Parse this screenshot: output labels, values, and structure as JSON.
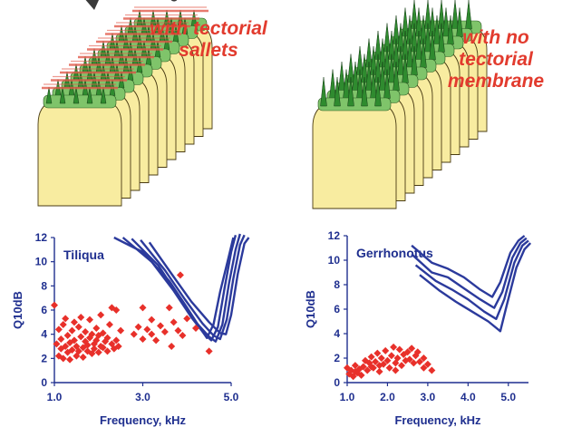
{
  "captions": {
    "left": [
      "with tectorial",
      "sallets"
    ],
    "right": [
      "with no",
      "tectorial",
      "membrane"
    ]
  },
  "colors": {
    "caption": "#e23b2e",
    "axis": "#1f2f8f",
    "points": "#e8302a",
    "tuning_curves": "#2b3a9c",
    "papilla_body": "#f8eca0",
    "hair_bundle": "#2f8b2f",
    "sallet": "#e25a4a"
  },
  "chart_data": [
    {
      "type": "scatter",
      "title": "",
      "annotation": "Tiliqua",
      "xlabel": "Frequency, kHz",
      "ylabel": "Q10dB",
      "xlim": [
        1.0,
        5.0
      ],
      "ylim": [
        0,
        12
      ],
      "xticks": [
        "1.0",
        "3.0",
        "5.0"
      ],
      "yticks": [
        "0",
        "2",
        "4",
        "6",
        "8",
        "10",
        "12"
      ],
      "grid": false,
      "legend": "none",
      "series": [
        {
          "points": [
            [
              1.0,
              6.4
            ],
            [
              1.05,
              3.2
            ],
            [
              1.1,
              2.2
            ],
            [
              1.1,
              4.4
            ],
            [
              1.15,
              2.8
            ],
            [
              1.15,
              3.6
            ],
            [
              1.2,
              2.0
            ],
            [
              1.2,
              4.8
            ],
            [
              1.25,
              3.0
            ],
            [
              1.25,
              5.3
            ],
            [
              1.3,
              2.5
            ],
            [
              1.3,
              3.9
            ],
            [
              1.35,
              1.9
            ],
            [
              1.35,
              3.3
            ],
            [
              1.4,
              4.3
            ],
            [
              1.4,
              2.7
            ],
            [
              1.45,
              5.0
            ],
            [
              1.45,
              3.5
            ],
            [
              1.5,
              2.2
            ],
            [
              1.5,
              3.0
            ],
            [
              1.55,
              4.6
            ],
            [
              1.55,
              2.6
            ],
            [
              1.6,
              3.8
            ],
            [
              1.6,
              5.4
            ],
            [
              1.65,
              2.9
            ],
            [
              1.65,
              2.1
            ],
            [
              1.7,
              3.4
            ],
            [
              1.7,
              4.2
            ],
            [
              1.75,
              2.6
            ],
            [
              1.75,
              3.1
            ],
            [
              1.8,
              5.2
            ],
            [
              1.8,
              3.7
            ],
            [
              1.85,
              2.4
            ],
            [
              1.85,
              4.0
            ],
            [
              1.9,
              3.2
            ],
            [
              1.9,
              2.8
            ],
            [
              1.95,
              4.5
            ],
            [
              1.95,
              3.5
            ],
            [
              2.0,
              2.5
            ],
            [
              2.0,
              3.9
            ],
            [
              2.05,
              3.0
            ],
            [
              2.05,
              5.6
            ],
            [
              2.1,
              2.9
            ],
            [
              2.1,
              4.1
            ],
            [
              2.15,
              3.4
            ],
            [
              2.2,
              3.7
            ],
            [
              2.2,
              2.6
            ],
            [
              2.25,
              4.8
            ],
            [
              2.3,
              6.2
            ],
            [
              2.3,
              3.2
            ],
            [
              2.35,
              2.8
            ],
            [
              2.4,
              3.5
            ],
            [
              2.4,
              6.0
            ],
            [
              2.45,
              3.0
            ],
            [
              2.5,
              4.3
            ],
            [
              2.8,
              4.0
            ],
            [
              2.9,
              4.6
            ],
            [
              3.0,
              3.6
            ],
            [
              3.0,
              6.2
            ],
            [
              3.1,
              4.4
            ],
            [
              3.2,
              4.0
            ],
            [
              3.2,
              5.2
            ],
            [
              3.3,
              3.5
            ],
            [
              3.4,
              4.7
            ],
            [
              3.5,
              4.2
            ],
            [
              3.6,
              6.2
            ],
            [
              3.65,
              3.0
            ],
            [
              3.7,
              5.0
            ],
            [
              3.8,
              4.3
            ],
            [
              3.85,
              8.9
            ],
            [
              3.9,
              3.9
            ],
            [
              4.0,
              5.3
            ],
            [
              4.2,
              4.5
            ],
            [
              4.5,
              2.6
            ]
          ]
        }
      ],
      "tuning_curves": [
        [
          [
            2.35,
            12.0
          ],
          [
            3.0,
            10.8
          ],
          [
            3.6,
            8.4
          ],
          [
            4.0,
            6.2
          ],
          [
            4.3,
            4.5
          ],
          [
            4.45,
            3.7
          ],
          [
            4.6,
            4.8
          ],
          [
            4.75,
            7.5
          ],
          [
            4.95,
            10.5
          ],
          [
            5.05,
            12.0
          ]
        ],
        [
          [
            2.55,
            12.0
          ],
          [
            3.2,
            10.0
          ],
          [
            3.7,
            7.6
          ],
          [
            4.1,
            5.4
          ],
          [
            4.4,
            4.0
          ],
          [
            4.55,
            3.5
          ],
          [
            4.7,
            4.6
          ],
          [
            4.85,
            7.8
          ],
          [
            5.0,
            10.8
          ],
          [
            5.1,
            12.2
          ]
        ],
        [
          [
            2.75,
            11.9
          ],
          [
            3.35,
            9.7
          ],
          [
            3.8,
            7.2
          ],
          [
            4.2,
            5.0
          ],
          [
            4.5,
            3.8
          ],
          [
            4.65,
            3.4
          ],
          [
            4.8,
            4.8
          ],
          [
            4.95,
            8.2
          ],
          [
            5.1,
            11.0
          ],
          [
            5.2,
            12.3
          ]
        ],
        [
          [
            2.95,
            11.8
          ],
          [
            3.5,
            9.3
          ],
          [
            3.95,
            6.9
          ],
          [
            4.35,
            4.9
          ],
          [
            4.6,
            3.9
          ],
          [
            4.75,
            3.6
          ],
          [
            4.9,
            5.2
          ],
          [
            5.05,
            8.6
          ],
          [
            5.2,
            11.4
          ],
          [
            5.3,
            12.2
          ]
        ],
        [
          [
            3.15,
            11.6
          ],
          [
            3.65,
            9.0
          ],
          [
            4.1,
            6.7
          ],
          [
            4.5,
            5.0
          ],
          [
            4.75,
            4.1
          ],
          [
            4.88,
            4.0
          ],
          [
            5.0,
            5.6
          ],
          [
            5.15,
            9.0
          ],
          [
            5.3,
            11.5
          ],
          [
            5.4,
            12.0
          ]
        ]
      ]
    },
    {
      "type": "scatter",
      "title": "",
      "annotation": "Gerrhonotus",
      "xlabel": "Frequency, kHz",
      "ylabel": "Q10dB",
      "xlim": [
        1.0,
        5.5
      ],
      "ylim": [
        0,
        12
      ],
      "xticks": [
        "1.0",
        "2.0",
        "3.0",
        "4.0",
        "5.0"
      ],
      "yticks": [
        "0",
        "2",
        "4",
        "6",
        "8",
        "10",
        "12"
      ],
      "grid": false,
      "legend": "none",
      "series": [
        {
          "points": [
            [
              1.0,
              1.2
            ],
            [
              1.05,
              0.7
            ],
            [
              1.1,
              1.0
            ],
            [
              1.15,
              0.5
            ],
            [
              1.2,
              1.4
            ],
            [
              1.25,
              0.8
            ],
            [
              1.3,
              1.1
            ],
            [
              1.35,
              0.6
            ],
            [
              1.4,
              1.3
            ],
            [
              1.45,
              1.8
            ],
            [
              1.5,
              1.0
            ],
            [
              1.55,
              1.6
            ],
            [
              1.6,
              2.1
            ],
            [
              1.65,
              1.2
            ],
            [
              1.7,
              1.7
            ],
            [
              1.75,
              2.4
            ],
            [
              1.8,
              1.4
            ],
            [
              1.85,
              2.0
            ],
            [
              1.9,
              1.5
            ],
            [
              1.95,
              2.6
            ],
            [
              2.0,
              1.8
            ],
            [
              2.05,
              1.2
            ],
            [
              2.1,
              2.2
            ],
            [
              2.15,
              2.9
            ],
            [
              2.2,
              1.6
            ],
            [
              2.25,
              2.0
            ],
            [
              2.3,
              2.7
            ],
            [
              2.35,
              1.4
            ],
            [
              2.4,
              2.3
            ],
            [
              2.45,
              1.8
            ],
            [
              2.5,
              2.5
            ],
            [
              2.55,
              1.9
            ],
            [
              2.6,
              2.8
            ],
            [
              2.65,
              1.6
            ],
            [
              2.7,
              2.2
            ],
            [
              2.75,
              2.5
            ],
            [
              2.8,
              1.7
            ],
            [
              2.9,
              2.0
            ],
            [
              3.0,
              1.5
            ],
            [
              3.1,
              1.0
            ],
            [
              1.2,
              0.9
            ],
            [
              1.8,
              0.9
            ],
            [
              2.2,
              1.0
            ],
            [
              1.6,
              1.3
            ],
            [
              2.9,
              1.2
            ]
          ]
        }
      ],
      "tuning_curves": [
        [
          [
            2.6,
            11.2
          ],
          [
            3.1,
            9.8
          ],
          [
            3.5,
            9.3
          ],
          [
            3.9,
            8.6
          ],
          [
            4.3,
            7.6
          ],
          [
            4.6,
            7.0
          ],
          [
            4.8,
            8.2
          ],
          [
            5.05,
            10.6
          ],
          [
            5.25,
            11.6
          ],
          [
            5.4,
            12.0
          ]
        ],
        [
          [
            2.6,
            10.5
          ],
          [
            3.1,
            9.0
          ],
          [
            3.5,
            8.6
          ],
          [
            3.9,
            7.7
          ],
          [
            4.3,
            6.8
          ],
          [
            4.65,
            6.1
          ],
          [
            4.85,
            7.4
          ],
          [
            5.1,
            10.2
          ],
          [
            5.3,
            11.4
          ],
          [
            5.45,
            11.8
          ]
        ],
        [
          [
            2.7,
            9.6
          ],
          [
            3.2,
            8.3
          ],
          [
            3.6,
            7.6
          ],
          [
            4.0,
            6.8
          ],
          [
            4.4,
            5.8
          ],
          [
            4.7,
            5.2
          ],
          [
            4.9,
            6.8
          ],
          [
            5.15,
            9.8
          ],
          [
            5.35,
            11.2
          ],
          [
            5.5,
            11.6
          ]
        ],
        [
          [
            2.8,
            8.8
          ],
          [
            3.3,
            7.5
          ],
          [
            3.7,
            6.6
          ],
          [
            4.1,
            5.8
          ],
          [
            4.5,
            5.0
          ],
          [
            4.8,
            4.2
          ],
          [
            4.95,
            6.2
          ],
          [
            5.2,
            9.4
          ],
          [
            5.4,
            10.9
          ],
          [
            5.55,
            11.4
          ]
        ]
      ]
    }
  ]
}
